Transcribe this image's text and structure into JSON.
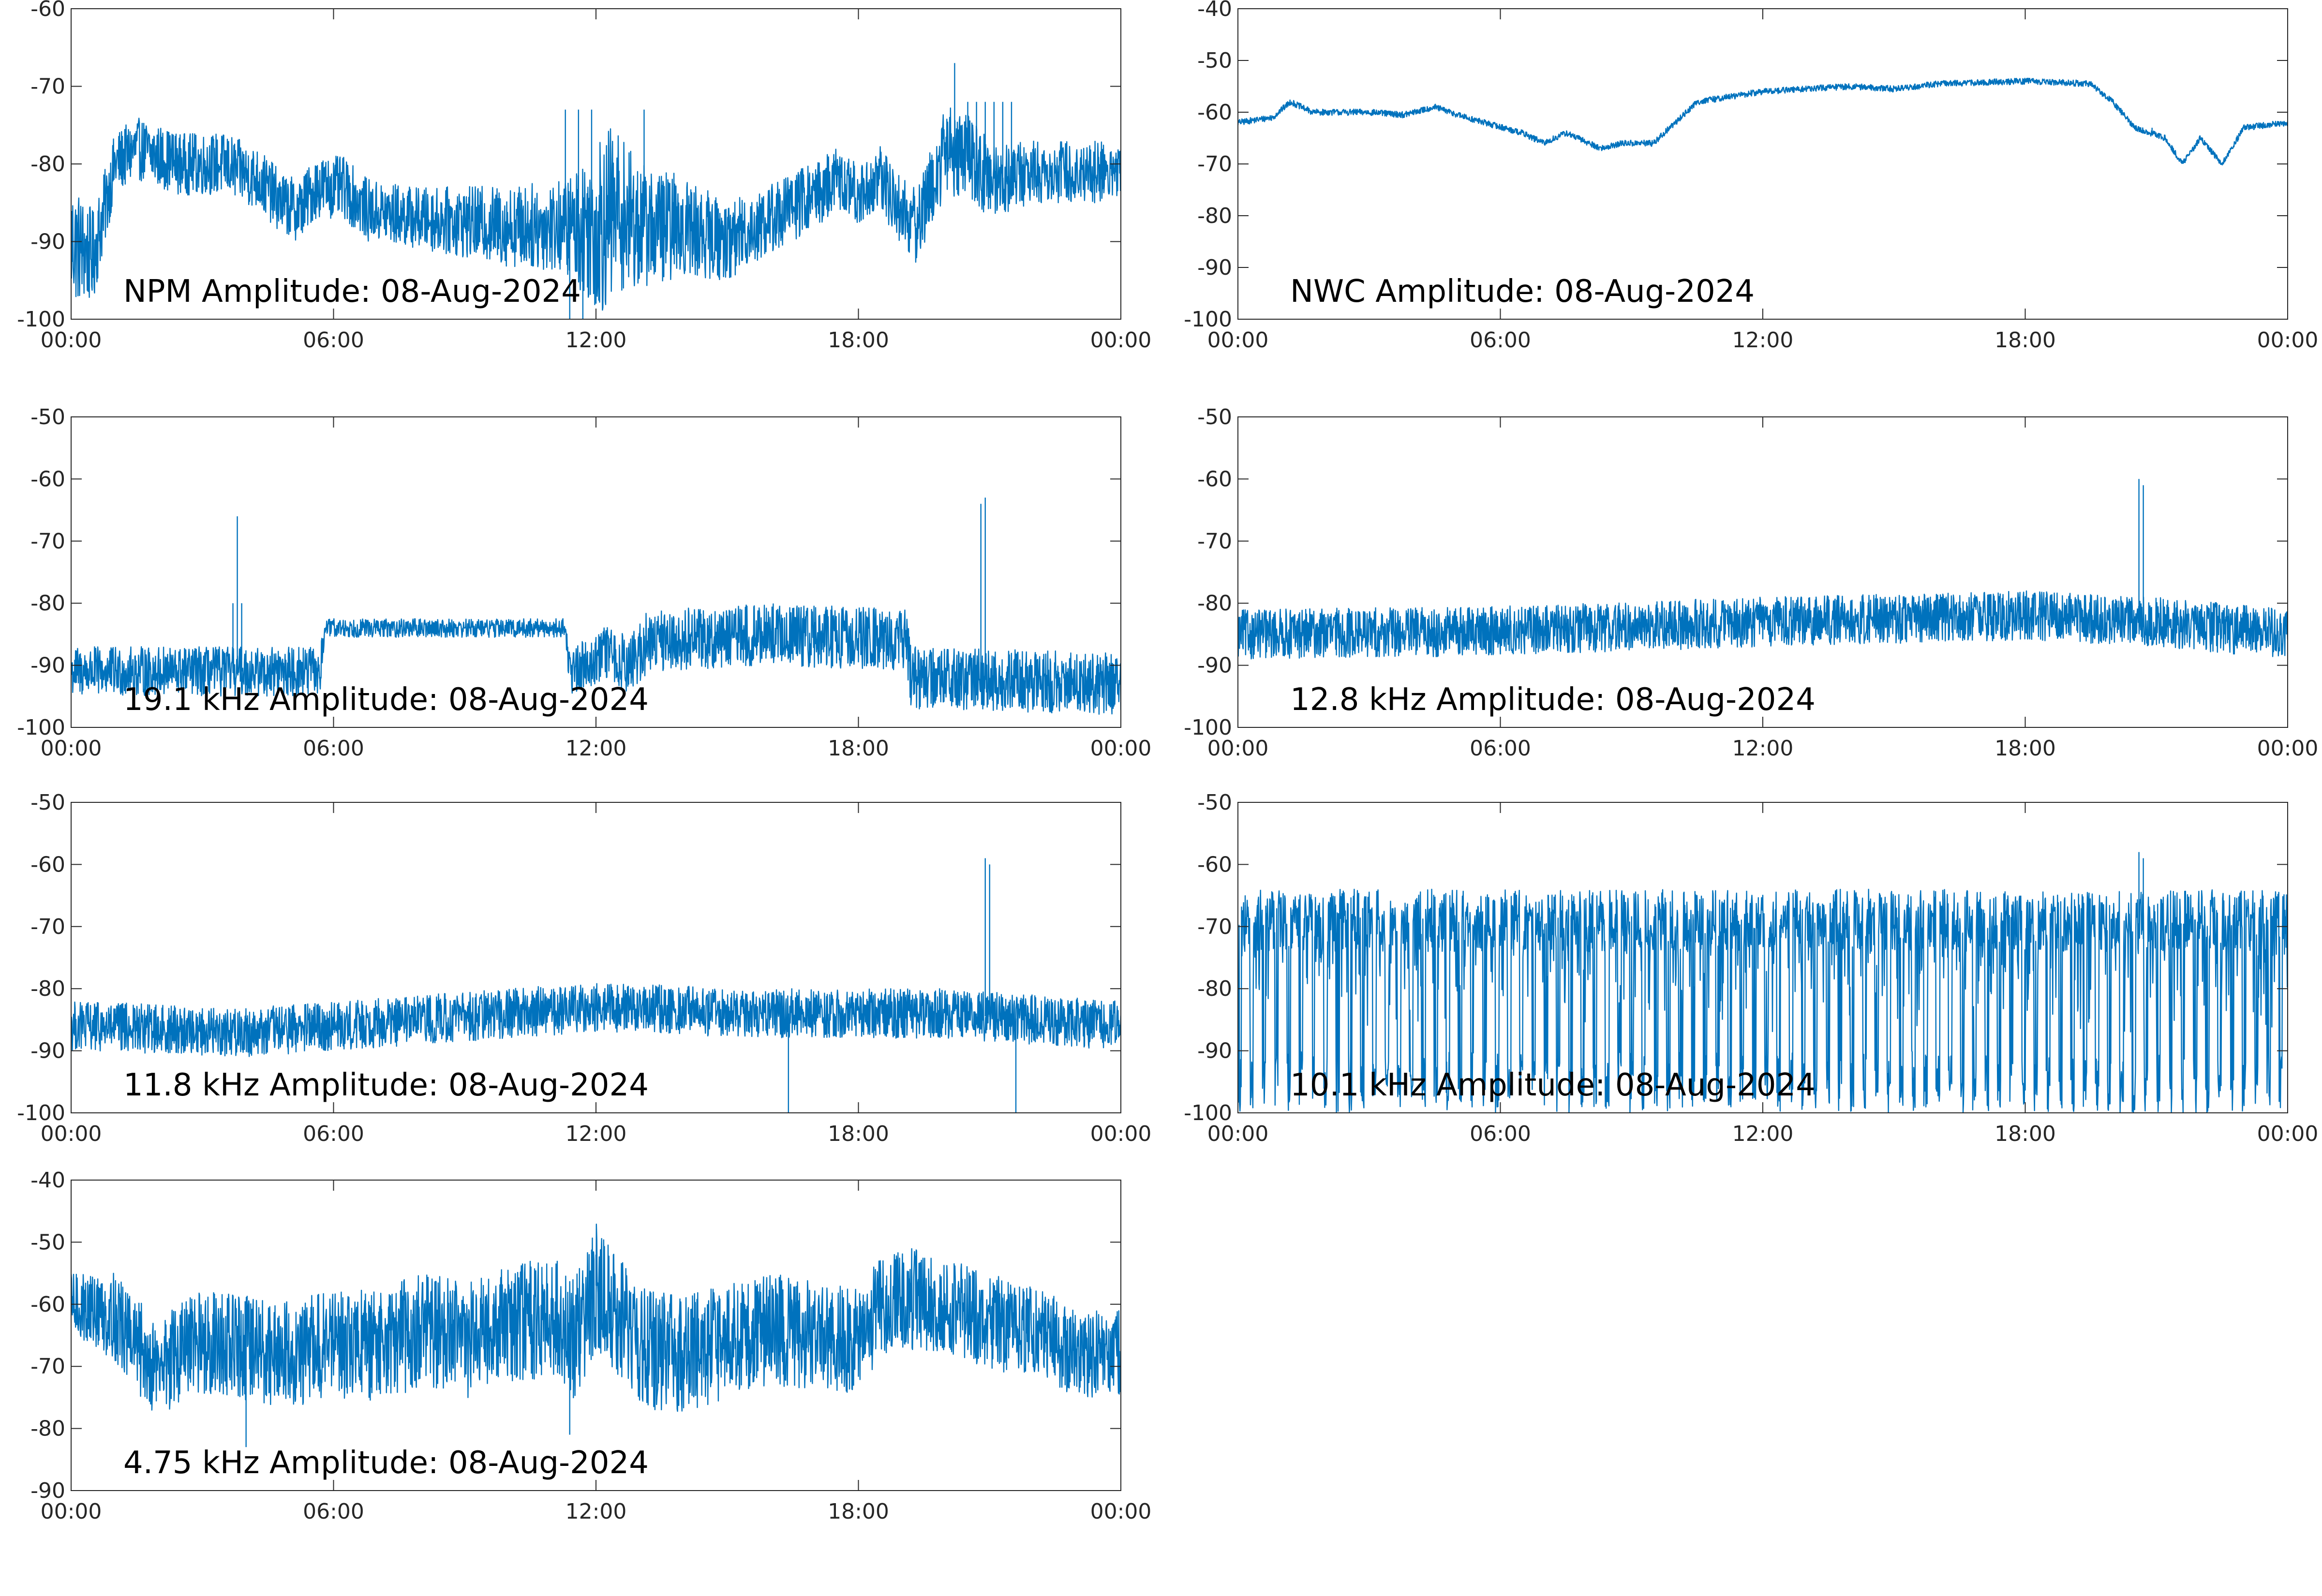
{
  "colors": {
    "line": "#0072bd",
    "axes": "#262626",
    "background": "#ffffff"
  },
  "chart_data": [
    {
      "type": "line",
      "title": "NPM Amplitude: 08-Aug-2024",
      "ylim": [
        -100,
        -60
      ],
      "yticks": [
        "-60",
        "-70",
        "-80",
        "-90",
        "-100"
      ],
      "xticks": [
        "00:00",
        "06:00",
        "12:00",
        "18:00",
        "00:00"
      ],
      "xlim": [
        0,
        24
      ],
      "grid": false,
      "series": [
        {
          "base": [
            [
              0,
              -90
            ],
            [
              0.5,
              -92
            ],
            [
              0.8,
              -85
            ],
            [
              1.0,
              -80
            ],
            [
              1.5,
              -78
            ],
            [
              2.5,
              -80
            ],
            [
              3.5,
              -80
            ],
            [
              4.3,
              -82
            ],
            [
              4.8,
              -85
            ],
            [
              5.2,
              -86
            ],
            [
              5.6,
              -83
            ],
            [
              6.2,
              -83
            ],
            [
              6.8,
              -86
            ],
            [
              8,
              -87
            ],
            [
              10,
              -88
            ],
            [
              11.5,
              -88
            ],
            [
              12,
              -88
            ],
            [
              12.5,
              -86
            ],
            [
              13,
              -88
            ],
            [
              14,
              -88
            ],
            [
              15,
              -90
            ],
            [
              16,
              -87
            ],
            [
              17,
              -84
            ],
            [
              17.5,
              -82
            ],
            [
              18,
              -84
            ],
            [
              18.5,
              -82
            ],
            [
              19,
              -86
            ],
            [
              19.3,
              -88
            ],
            [
              19.6,
              -84
            ],
            [
              20,
              -78
            ],
            [
              20.5,
              -79
            ],
            [
              21,
              -82
            ],
            [
              22,
              -81
            ],
            [
              23,
              -81
            ],
            [
              24,
              -81
            ]
          ],
          "noise": [
            [
              0,
              8
            ],
            [
              1,
              4
            ],
            [
              5,
              4
            ],
            [
              8,
              4
            ],
            [
              11.3,
              6
            ],
            [
              12.2,
              12
            ],
            [
              13,
              8
            ],
            [
              15,
              5
            ],
            [
              18,
              4
            ],
            [
              19.5,
              5
            ],
            [
              20,
              6
            ],
            [
              22,
              4
            ],
            [
              24,
              4
            ]
          ],
          "spikes": [
            [
              11.3,
              -73
            ],
            [
              11.4,
              -102
            ],
            [
              11.6,
              -73
            ],
            [
              11.7,
              -100
            ],
            [
              11.9,
              -73
            ],
            [
              12,
              -98
            ],
            [
              13.1,
              -73
            ],
            [
              20.2,
              -67
            ],
            [
              20.5,
              -72
            ],
            [
              20.7,
              -72
            ],
            [
              20.9,
              -72
            ],
            [
              21.1,
              -72
            ],
            [
              21.3,
              -72
            ],
            [
              21.5,
              -72
            ]
          ]
        }
      ]
    },
    {
      "type": "line",
      "title": "NWC Amplitude: 08-Aug-2024",
      "ylim": [
        -100,
        -40
      ],
      "yticks": [
        "-40",
        "-50",
        "-60",
        "-70",
        "-80",
        "-90",
        "-100"
      ],
      "xticks": [
        "00:00",
        "06:00",
        "12:00",
        "18:00",
        "00:00"
      ],
      "xlim": [
        0,
        24
      ],
      "grid": false,
      "series": [
        {
          "base": [
            [
              0,
              -62
            ],
            [
              0.8,
              -61
            ],
            [
              1.2,
              -58
            ],
            [
              1.7,
              -60
            ],
            [
              3,
              -60
            ],
            [
              3.8,
              -60.5
            ],
            [
              4.5,
              -59
            ],
            [
              5.2,
              -61
            ],
            [
              6.5,
              -64
            ],
            [
              7,
              -66
            ],
            [
              7.5,
              -64
            ],
            [
              8.3,
              -67
            ],
            [
              8.8,
              -66
            ],
            [
              9.5,
              -66
            ],
            [
              10,
              -62
            ],
            [
              10.5,
              -58
            ],
            [
              12,
              -56
            ],
            [
              14,
              -55
            ],
            [
              15,
              -55.5
            ],
            [
              16,
              -54.5
            ],
            [
              18,
              -54
            ],
            [
              19.5,
              -54.5
            ],
            [
              20,
              -58
            ],
            [
              20.5,
              -63
            ],
            [
              21.2,
              -65
            ],
            [
              21.6,
              -70
            ],
            [
              22,
              -65
            ],
            [
              22.5,
              -70
            ],
            [
              23,
              -63
            ],
            [
              24,
              -62
            ]
          ],
          "noise": [
            [
              0,
              0.6
            ],
            [
              24,
              0.6
            ]
          ],
          "spikes": [
            [
              20.9,
              -63
            ]
          ]
        }
      ]
    },
    {
      "type": "line",
      "title": "19.1 kHz Amplitude: 08-Aug-2024",
      "ylim": [
        -100,
        -50
      ],
      "yticks": [
        "-50",
        "-60",
        "-70",
        "-80",
        "-90",
        "-100"
      ],
      "xticks": [
        "00:00",
        "06:00",
        "12:00",
        "18:00",
        "00:00"
      ],
      "xlim": [
        0,
        24
      ],
      "grid": false,
      "series": [
        {
          "base": [
            [
              0,
              -91
            ],
            [
              5.7,
              -91
            ],
            [
              5.8,
              -84
            ],
            [
              11.3,
              -84
            ],
            [
              11.4,
              -91
            ],
            [
              12.2,
              -88
            ],
            [
              12.8,
              -90
            ],
            [
              13.2,
              -86
            ],
            [
              16,
              -85
            ],
            [
              19.1,
              -86
            ],
            [
              19.2,
              -92
            ],
            [
              24,
              -93
            ]
          ],
          "noise": [
            [
              0,
              4
            ],
            [
              5.7,
              4
            ],
            [
              5.8,
              1.5
            ],
            [
              11.3,
              1.5
            ],
            [
              11.4,
              4
            ],
            [
              13.2,
              5
            ],
            [
              19.1,
              5
            ],
            [
              19.2,
              5
            ],
            [
              24,
              5
            ]
          ],
          "spikes": [
            [
              3.8,
              -66
            ],
            [
              3.7,
              -80
            ],
            [
              3.9,
              -80
            ],
            [
              20.8,
              -64
            ],
            [
              20.9,
              -63
            ]
          ]
        }
      ]
    },
    {
      "type": "line",
      "title": "12.8 kHz Amplitude: 08-Aug-2024",
      "ylim": [
        -100,
        -50
      ],
      "yticks": [
        "-50",
        "-60",
        "-70",
        "-80",
        "-90",
        "-100"
      ],
      "xticks": [
        "00:00",
        "06:00",
        "12:00",
        "18:00",
        "00:00"
      ],
      "xlim": [
        0,
        24
      ],
      "grid": false,
      "series": [
        {
          "base": [
            [
              0,
              -85
            ],
            [
              6,
              -84.5
            ],
            [
              12,
              -83
            ],
            [
              18,
              -82
            ],
            [
              21,
              -83
            ],
            [
              24,
              -85
            ]
          ],
          "noise": [
            [
              0,
              4
            ],
            [
              24,
              4
            ]
          ],
          "spikes": [
            [
              20.6,
              -60
            ],
            [
              20.7,
              -61
            ]
          ]
        }
      ]
    },
    {
      "type": "line",
      "title": "11.8 kHz Amplitude: 08-Aug-2024",
      "ylim": [
        -100,
        -50
      ],
      "yticks": [
        "-50",
        "-60",
        "-70",
        "-80",
        "-90",
        "-100"
      ],
      "xticks": [
        "00:00",
        "06:00",
        "12:00",
        "18:00",
        "00:00"
      ],
      "xlim": [
        0,
        24
      ],
      "grid": false,
      "series": [
        {
          "base": [
            [
              0,
              -86
            ],
            [
              4,
              -87
            ],
            [
              8,
              -85
            ],
            [
              12,
              -83
            ],
            [
              16,
              -84
            ],
            [
              20,
              -84
            ],
            [
              24,
              -86
            ]
          ],
          "noise": [
            [
              0,
              4
            ],
            [
              24,
              4
            ]
          ],
          "spikes": [
            [
              20.9,
              -59
            ],
            [
              21,
              -60
            ],
            [
              16.4,
              -100
            ],
            [
              21.6,
              -100
            ]
          ]
        }
      ]
    },
    {
      "type": "line",
      "title": "10.1 kHz Amplitude: 08-Aug-2024",
      "ylim": [
        -100,
        -50
      ],
      "yticks": [
        "-50",
        "-60",
        "-70",
        "-80",
        "-90",
        "-100"
      ],
      "xticks": [
        "00:00",
        "06:00",
        "12:00",
        "18:00",
        "00:00"
      ],
      "xlim": [
        0,
        24
      ],
      "grid": false,
      "series": [
        {
          "base": [
            [
              0,
              -72
            ],
            [
              6,
              -72
            ],
            [
              12,
              -73
            ],
            [
              18,
              -72
            ],
            [
              24,
              -72
            ]
          ],
          "noise": [
            [
              0,
              6
            ],
            [
              24,
              6
            ]
          ],
          "oscillation": {
            "period_h": 0.28,
            "low": -100,
            "high": -64
          },
          "spikes": [
            [
              20.6,
              -58
            ],
            [
              20.7,
              -59
            ]
          ]
        }
      ]
    },
    {
      "type": "line",
      "title": "4.75 kHz Amplitude: 08-Aug-2024",
      "ylim": [
        -90,
        -40
      ],
      "yticks": [
        "-40",
        "-50",
        "-60",
        "-70",
        "-80",
        "-90"
      ],
      "xticks": [
        "00:00",
        "06:00",
        "12:00",
        "18:00",
        "00:00"
      ],
      "xlim": [
        0,
        24
      ],
      "grid": false,
      "series": [
        {
          "base": [
            [
              0,
              -60
            ],
            [
              1,
              -62
            ],
            [
              1.5,
              -67
            ],
            [
              2,
              -70
            ],
            [
              3,
              -66
            ],
            [
              4,
              -67
            ],
            [
              5,
              -68
            ],
            [
              6,
              -66
            ],
            [
              7,
              -67
            ],
            [
              8,
              -64
            ],
            [
              9,
              -66
            ],
            [
              10,
              -63
            ],
            [
              11,
              -62
            ],
            [
              11.5,
              -66
            ],
            [
              12,
              -57
            ],
            [
              12.5,
              -62
            ],
            [
              13,
              -67
            ],
            [
              14,
              -68
            ],
            [
              15,
              -66
            ],
            [
              16,
              -64
            ],
            [
              17,
              -65
            ],
            [
              18,
              -66
            ],
            [
              18.5,
              -60
            ],
            [
              19,
              -59
            ],
            [
              20,
              -60
            ],
            [
              21,
              -63
            ],
            [
              22,
              -64
            ],
            [
              23,
              -68
            ],
            [
              24,
              -68
            ]
          ],
          "noise": [
            [
              0,
              5
            ],
            [
              1.5,
              8
            ],
            [
              12,
              10
            ],
            [
              24,
              7
            ]
          ],
          "spikes": [
            [
              12,
              -52
            ],
            [
              4,
              -83
            ],
            [
              11.4,
              -81
            ]
          ]
        }
      ]
    }
  ]
}
